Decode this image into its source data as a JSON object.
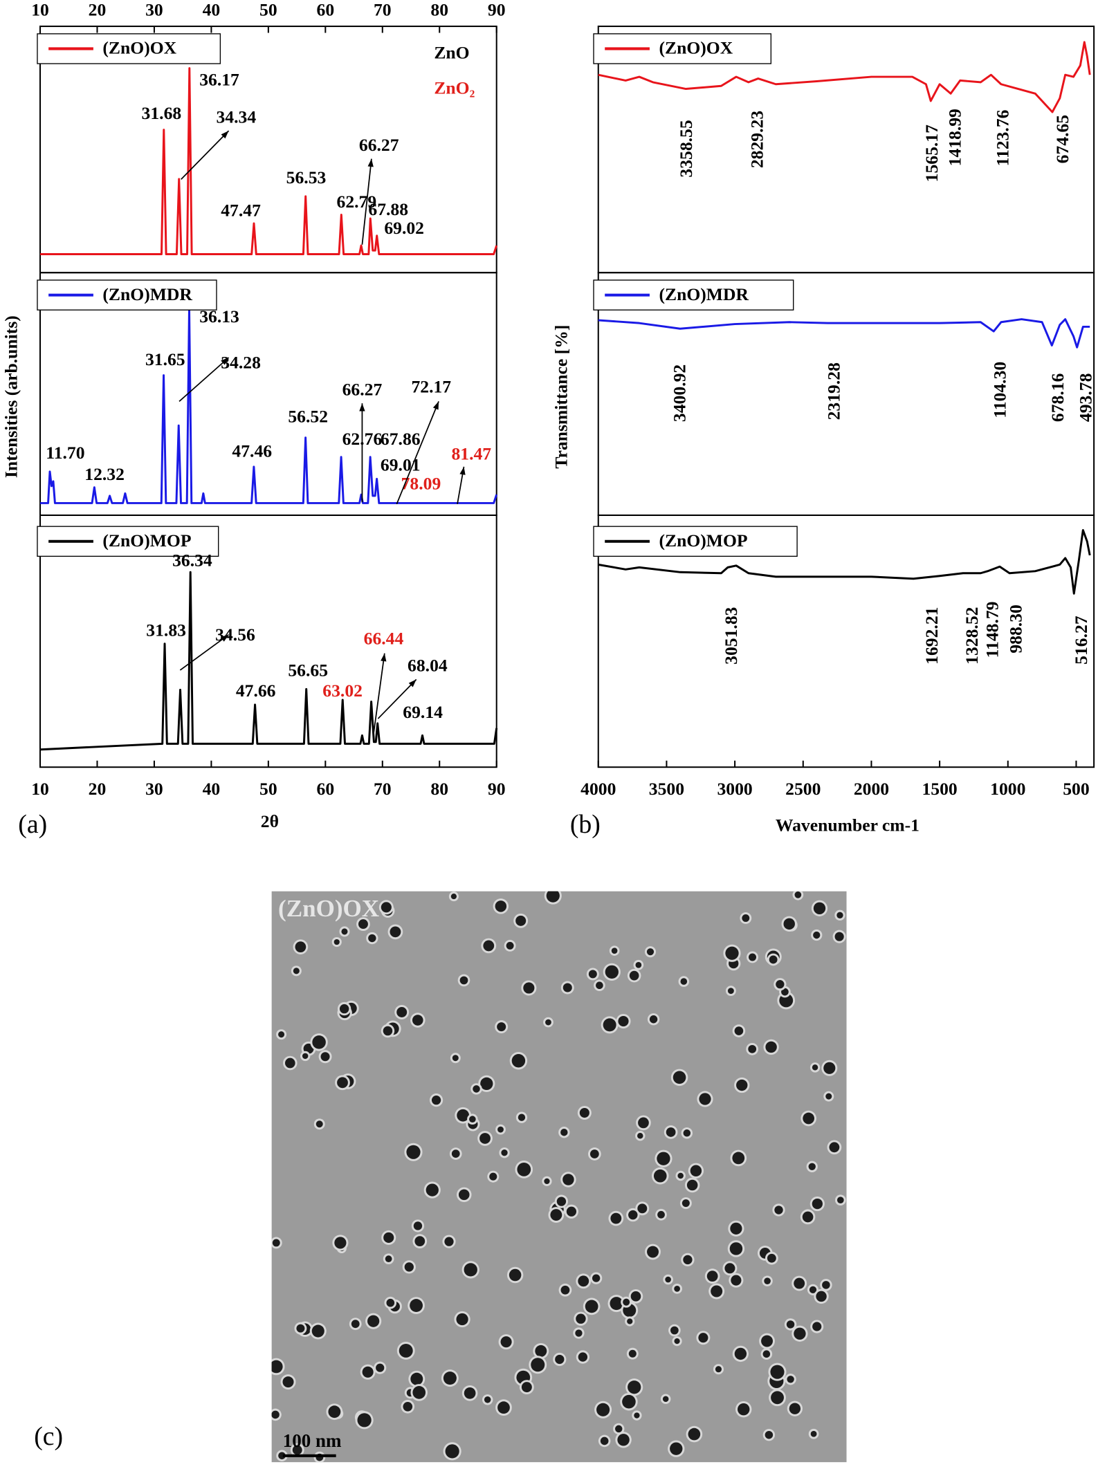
{
  "chart_data": [
    {
      "type": "line",
      "xlabel": "2θ",
      "ylabel": "Intensities (arb.units)",
      "panel_label": "(a)",
      "xlim": [
        10,
        90
      ],
      "xticks": [
        10,
        20,
        30,
        40,
        50,
        60,
        70,
        80,
        90
      ],
      "ylim": [
        0,
        100
      ],
      "notes": [
        {
          "text": "ZnO",
          "color": "#000000"
        },
        {
          "text": "ZnO₂",
          "color": "#e0201b"
        }
      ],
      "series": [
        {
          "name": "(ZnO)OX",
          "color": "#e8141b",
          "x": [
            10,
            31.28,
            31.68,
            32.08,
            33.94,
            34.34,
            34.74,
            35.77,
            36.17,
            36.57,
            47.07,
            47.47,
            47.87,
            56.13,
            56.53,
            56.93,
            62.39,
            62.79,
            63.19,
            65.97,
            66.27,
            66.57,
            67.58,
            67.88,
            68.3,
            68.72,
            69.02,
            69.4,
            89.5,
            90
          ],
          "values": [
            7.5,
            7.5,
            58,
            7.5,
            7.5,
            38,
            7.5,
            7.5,
            83,
            7.5,
            7.5,
            20,
            7.5,
            7.5,
            31,
            7.5,
            7.5,
            23.5,
            7.5,
            7.5,
            11,
            7.5,
            7.5,
            22,
            9,
            9,
            15,
            7.5,
            7.5,
            11
          ],
          "peaks": [
            {
              "value": 31.68
            },
            {
              "value": 36.17
            },
            {
              "value": 34.34
            },
            {
              "value": 47.47
            },
            {
              "value": 56.53
            },
            {
              "value": 62.79
            },
            {
              "value": 66.27
            },
            {
              "value": 67.88
            },
            {
              "value": 69.02
            }
          ]
        },
        {
          "name": "(ZnO)MDR",
          "color": "#1a1ae6",
          "x": [
            10,
            11.4,
            11.7,
            12.0,
            12.3,
            12.6,
            19.1,
            19.5,
            19.9,
            21.8,
            22.2,
            22.6,
            24.5,
            24.9,
            25.3,
            31.25,
            31.65,
            32.05,
            33.88,
            34.28,
            34.68,
            35.73,
            36.13,
            36.53,
            38.3,
            38.6,
            38.9,
            47.06,
            47.46,
            47.86,
            56.12,
            56.52,
            56.92,
            62.36,
            62.76,
            63.16,
            65.97,
            66.27,
            66.57,
            67.46,
            67.86,
            68.3,
            68.71,
            69.01,
            69.4,
            89.5,
            90
          ],
          "values": [
            5,
            5,
            18,
            12,
            14,
            5,
            5,
            11.5,
            5,
            5,
            8,
            5,
            5,
            9,
            5,
            5,
            57.7,
            5,
            5,
            37,
            5,
            5,
            85,
            5,
            5,
            9,
            5,
            5,
            20,
            5,
            5,
            32,
            5,
            5,
            24,
            5,
            5,
            8.5,
            5,
            5,
            24,
            8,
            8,
            15,
            5,
            5,
            8.5
          ],
          "peaks": [
            {
              "value": 11.7,
              "label": "11.70"
            },
            {
              "value": 12.32
            },
            {
              "value": 31.65
            },
            {
              "value": 36.13
            },
            {
              "value": 34.28
            },
            {
              "value": 47.46
            },
            {
              "value": 56.52
            },
            {
              "value": 62.76
            },
            {
              "value": 66.27
            },
            {
              "value": 72.17
            },
            {
              "value": 67.86
            },
            {
              "value": 69.01
            },
            {
              "value": 78.09,
              "color": "#e0201b"
            },
            {
              "value": 81.47,
              "color": "#e0201b"
            }
          ]
        },
        {
          "name": "(ZnO)MOP",
          "color": "#000000",
          "x": [
            10,
            31.43,
            31.83,
            32.23,
            34.16,
            34.56,
            34.96,
            35.94,
            36.34,
            36.74,
            47.26,
            47.66,
            48.06,
            56.25,
            56.65,
            57.05,
            62.62,
            63.02,
            63.42,
            66.14,
            66.44,
            66.74,
            67.64,
            68.04,
            68.5,
            68.84,
            69.14,
            69.5,
            76.7,
            77,
            77.3,
            89.6,
            90
          ],
          "values": [
            7,
            9.3,
            49,
            9.3,
            9.3,
            30.7,
            9.3,
            9.3,
            77.4,
            9.3,
            9.3,
            24.8,
            9.3,
            9.3,
            31,
            9.3,
            9.3,
            26.7,
            9.3,
            9.3,
            12.6,
            9.3,
            9.3,
            26,
            10,
            10,
            17.4,
            9.3,
            9.3,
            12.6,
            9.3,
            9.3,
            15.5
          ],
          "peaks": [
            {
              "value": 31.83
            },
            {
              "value": 36.34
            },
            {
              "value": 34.56
            },
            {
              "value": 47.66
            },
            {
              "value": 56.65
            },
            {
              "value": 63.02,
              "color": "#e0201b"
            },
            {
              "value": 66.44,
              "color": "#e0201b"
            },
            {
              "value": 68.04
            },
            {
              "value": 69.14
            }
          ]
        }
      ]
    },
    {
      "type": "line",
      "xlabel": "Wavenumber cm-1",
      "ylabel": "Transmittance [%]",
      "panel_label": "(b)",
      "xlim": [
        4000,
        370
      ],
      "xticks": [
        4000,
        3500,
        3000,
        2500,
        2000,
        1500,
        1000,
        500
      ],
      "ylim": [
        0,
        100
      ],
      "series": [
        {
          "name": "(ZnO)OX",
          "color": "#e8141b",
          "x": [
            4000,
            3800,
            3700,
            3600,
            3358.55,
            3100,
            2990,
            2900,
            2829.23,
            2700,
            2400,
            2000,
            1700,
            1600,
            1565.17,
            1500,
            1418.99,
            1350,
            1200,
            1123.76,
            1050,
            800,
            674.65,
            620,
            580,
            520,
            470,
            440,
            420,
            400
          ],
          "values": [
            80.3,
            78,
            79.5,
            77.3,
            74.6,
            75.8,
            79.5,
            77.3,
            78.8,
            76.5,
            77.7,
            79.5,
            79.5,
            76.5,
            69.7,
            76.5,
            72.7,
            78,
            77.3,
            80.3,
            76.5,
            72.7,
            65.2,
            70.8,
            80.3,
            79.5,
            84.1,
            93.6,
            87.9,
            80.3
          ],
          "peaks": [
            {
              "value": 3358.55
            },
            {
              "value": 2829.23
            },
            {
              "value": 1565.17
            },
            {
              "value": 1418.99
            },
            {
              "value": 1123.76
            },
            {
              "value": 674.65
            }
          ]
        },
        {
          "name": "(ZnO)MDR",
          "color": "#1a1ae6",
          "x": [
            4000,
            3700,
            3400.92,
            3000,
            2600,
            2319.28,
            1500,
            1200,
            1104.3,
            1050,
            900,
            750,
            678.16,
            620,
            580,
            520,
            493.78,
            450,
            400
          ],
          "values": [
            80.4,
            79.2,
            76.9,
            78.8,
            79.6,
            79.2,
            79.2,
            79.6,
            75.8,
            79.6,
            80.8,
            79.6,
            70,
            78.5,
            80.8,
            73.8,
            69.2,
            77.7,
            77.7
          ],
          "peaks": [
            {
              "value": 3400.92
            },
            {
              "value": 2319.28
            },
            {
              "value": 1104.3,
              "label": "1104.30"
            },
            {
              "value": 678.16
            },
            {
              "value": 493.78
            }
          ]
        },
        {
          "name": "(ZnO)MOP",
          "color": "#000000",
          "x": [
            4000,
            3800,
            3700,
            3400,
            3100,
            3051.83,
            2990,
            2900,
            2700,
            2000,
            1692.21,
            1500,
            1328.52,
            1200,
            1148.79,
            1060,
            988.3,
            800,
            620,
            580,
            540,
            516.27,
            480,
            450,
            420,
            400
          ],
          "values": [
            80.4,
            78.5,
            79.3,
            77.4,
            77,
            79.3,
            80,
            77,
            75.6,
            75.6,
            74.8,
            75.9,
            77,
            77,
            77.8,
            79.6,
            77,
            77.8,
            80.4,
            83,
            79.3,
            68.9,
            82.2,
            94.1,
            89.6,
            84.1
          ],
          "peaks": [
            {
              "value": 3051.83
            },
            {
              "value": 1692.21
            },
            {
              "value": 1328.52
            },
            {
              "value": 1148.79
            },
            {
              "value": 988.3,
              "label": "988.30"
            },
            {
              "value": 516.27
            }
          ]
        }
      ]
    }
  ],
  "image": {
    "panel_label": "(c)",
    "caption": "(ZnO)OX",
    "scale_bar": "100 nm"
  }
}
